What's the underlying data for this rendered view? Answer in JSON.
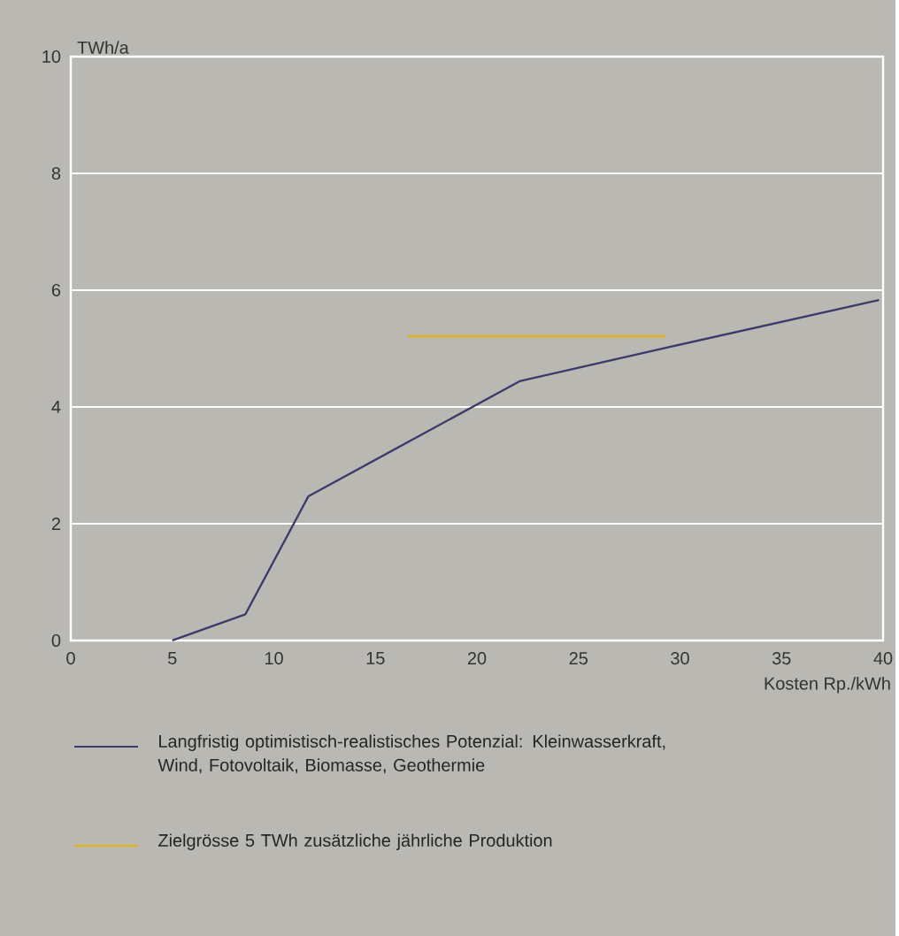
{
  "chart_data": {
    "type": "line",
    "xlabel": "Kosten Rp./kWh",
    "ylabel": "TWh/a",
    "xlim": [
      0,
      40
    ],
    "ylim": [
      0,
      10
    ],
    "xticks": [
      0,
      5,
      10,
      15,
      20,
      25,
      30,
      35,
      40
    ],
    "yticks": [
      0,
      2,
      4,
      6,
      8,
      10
    ],
    "grid": "y",
    "legend": "bottom",
    "marker": "none",
    "line_style": "solid",
    "series": [
      {
        "name": "Langfristig optimistisch-realistisches Potenzial: Kleinwasserkraft, Wind, Fotovoltaik, Biomasse, Geothermie",
        "color": "#3b3b6b",
        "x": [
          5,
          8.6,
          11.7,
          22.1,
          29.4,
          39.8
        ],
        "values": [
          0,
          0.45,
          2.47,
          4.44,
          5.02,
          5.83
        ]
      },
      {
        "name": "Zielgrösse 5 TWh zusätzliche jährliche Produktion",
        "color": "#e6b400",
        "x": [
          16.6,
          29.3
        ],
        "values": [
          5.21,
          5.21
        ]
      }
    ]
  }
}
